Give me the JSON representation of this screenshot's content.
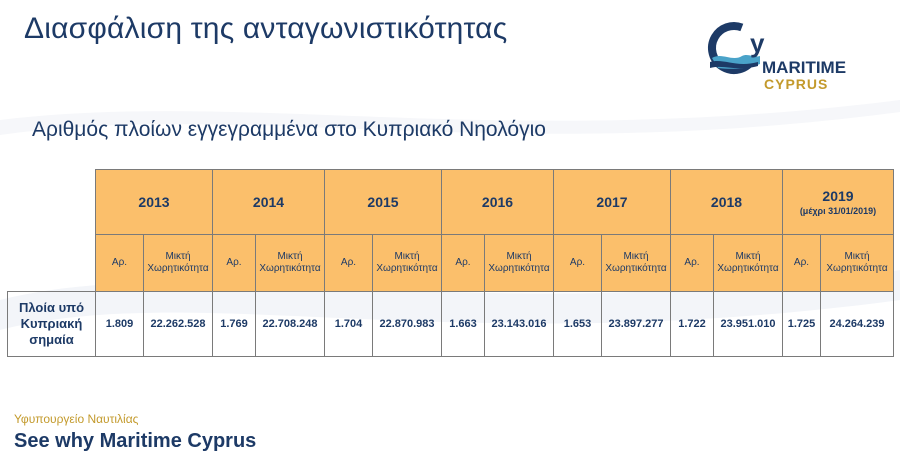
{
  "header": {
    "title": "Διασφάλιση της ανταγωνιστικότητας"
  },
  "logo": {
    "letter": "y",
    "line1": "MARITIME",
    "line2": "CYPRUS"
  },
  "subtitle": "Αριθμός πλοίων εγγεγραμμένα στο Κυπριακό Νηολόγιο",
  "table": {
    "years": [
      {
        "year": "2013",
        "note": ""
      },
      {
        "year": "2014",
        "note": ""
      },
      {
        "year": "2015",
        "note": ""
      },
      {
        "year": "2016",
        "note": ""
      },
      {
        "year": "2017",
        "note": ""
      },
      {
        "year": "2018",
        "note": ""
      },
      {
        "year": "2019",
        "note": "(μέχρι 31/01/2019)"
      }
    ],
    "sub_headers": {
      "count": "Αρ.",
      "tonnage": "Μικτή Χωρητικότητα"
    },
    "row_label": "Πλοία υπό Κυπριακή σημαία",
    "values": [
      {
        "count": "1.809",
        "tonnage": "22.262.528"
      },
      {
        "count": "1.769",
        "tonnage": "22.708.248"
      },
      {
        "count": "1.704",
        "tonnage": "22.870.983"
      },
      {
        "count": "1.663",
        "tonnage": "23.143.016"
      },
      {
        "count": "1.653",
        "tonnage": "23.897.277"
      },
      {
        "count": "1.722",
        "tonnage": "23.951.010"
      },
      {
        "count": "1.725",
        "tonnage": "24.264.239"
      }
    ]
  },
  "footer": {
    "ministry": "Υφυπουργείο Ναυτιλίας",
    "slogan": "See why Maritime Cyprus"
  },
  "colors": {
    "navy": "#1d3a66",
    "orange_header": "#fbbf6b",
    "gold": "#c39a2c"
  }
}
